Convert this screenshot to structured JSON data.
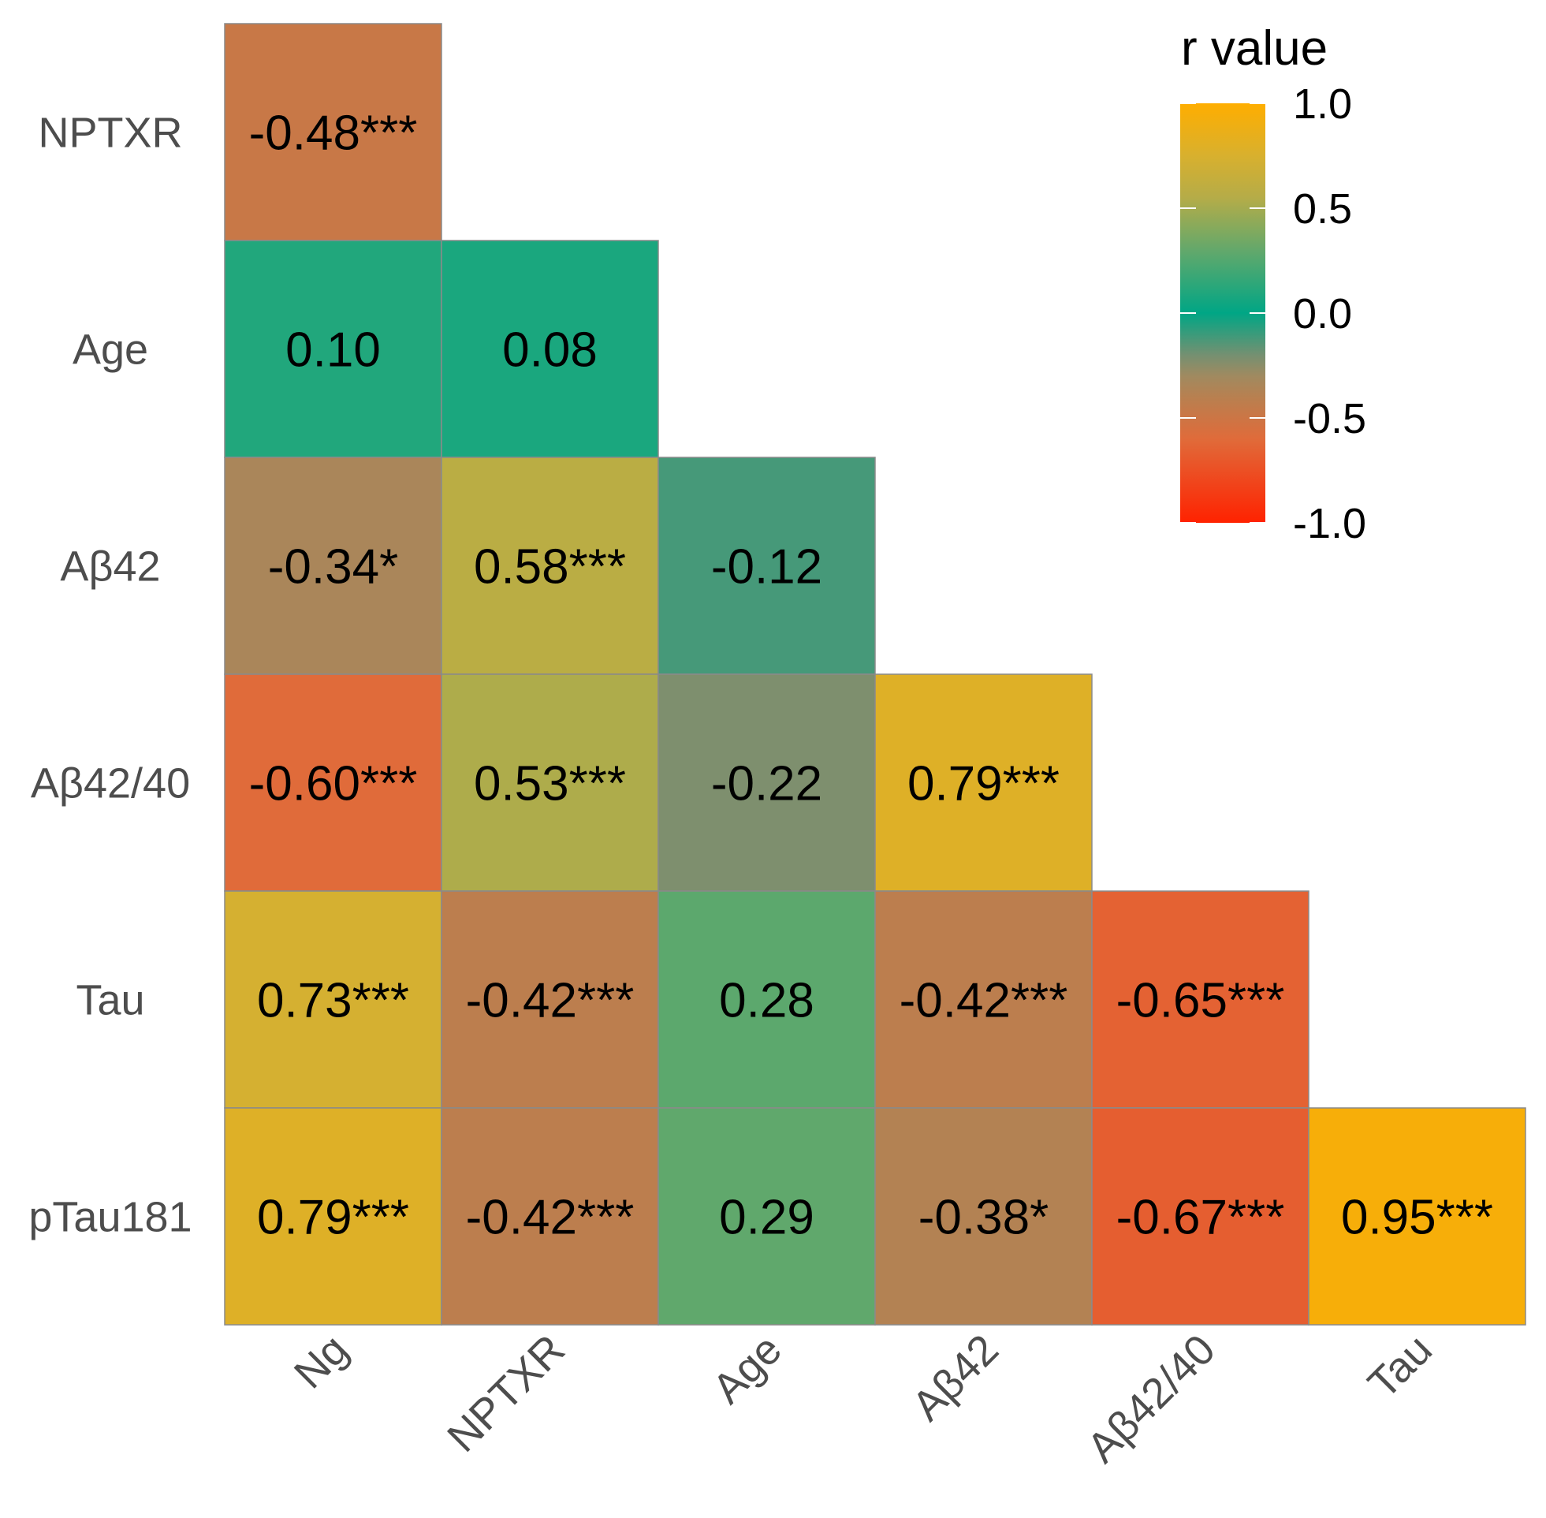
{
  "chart_data": {
    "type": "heatmap",
    "title": "",
    "row_labels": [
      "NPTXR",
      "Age",
      "Aβ42",
      "Aβ42/40",
      "Tau",
      "pTau181"
    ],
    "column_labels": [
      "Ng",
      "NPTXR",
      "Age",
      "Aβ42",
      "Aβ42/40",
      "Tau"
    ],
    "cells": [
      {
        "row": "NPTXR",
        "col": "Ng",
        "r": -0.48,
        "label": "-0.48***"
      },
      {
        "row": "Age",
        "col": "Ng",
        "r": 0.1,
        "label": "0.10"
      },
      {
        "row": "Age",
        "col": "NPTXR",
        "r": 0.08,
        "label": "0.08"
      },
      {
        "row": "Aβ42",
        "col": "Ng",
        "r": -0.34,
        "label": "-0.34*"
      },
      {
        "row": "Aβ42",
        "col": "NPTXR",
        "r": 0.58,
        "label": "0.58***"
      },
      {
        "row": "Aβ42",
        "col": "Age",
        "r": -0.12,
        "label": "-0.12"
      },
      {
        "row": "Aβ42/40",
        "col": "Ng",
        "r": -0.6,
        "label": "-0.60***"
      },
      {
        "row": "Aβ42/40",
        "col": "NPTXR",
        "r": 0.53,
        "label": "0.53***"
      },
      {
        "row": "Aβ42/40",
        "col": "Age",
        "r": -0.22,
        "label": "-0.22"
      },
      {
        "row": "Aβ42/40",
        "col": "Aβ42",
        "r": 0.79,
        "label": "0.79***"
      },
      {
        "row": "Tau",
        "col": "Ng",
        "r": 0.73,
        "label": "0.73***"
      },
      {
        "row": "Tau",
        "col": "NPTXR",
        "r": -0.42,
        "label": "-0.42***"
      },
      {
        "row": "Tau",
        "col": "Age",
        "r": 0.28,
        "label": "0.28"
      },
      {
        "row": "Tau",
        "col": "Aβ42",
        "r": -0.42,
        "label": "-0.42***"
      },
      {
        "row": "Tau",
        "col": "Aβ42/40",
        "r": -0.65,
        "label": "-0.65***"
      },
      {
        "row": "pTau181",
        "col": "Ng",
        "r": 0.79,
        "label": "0.79***"
      },
      {
        "row": "pTau181",
        "col": "NPTXR",
        "r": -0.42,
        "label": "-0.42***"
      },
      {
        "row": "pTau181",
        "col": "Age",
        "r": 0.29,
        "label": "0.29"
      },
      {
        "row": "pTau181",
        "col": "Aβ42",
        "r": -0.38,
        "label": "-0.38*"
      },
      {
        "row": "pTau181",
        "col": "Aβ42/40",
        "r": -0.67,
        "label": "-0.67***"
      },
      {
        "row": "pTau181",
        "col": "Tau",
        "r": 0.95,
        "label": "0.95***"
      }
    ],
    "legend": {
      "title": "r value",
      "range": [
        -1.0,
        1.0
      ],
      "ticks": [
        "1.0",
        "0.5",
        "0.0",
        "-0.5",
        "-1.0"
      ],
      "tick_values": [
        1.0,
        0.5,
        0.0,
        -0.5,
        -1.0
      ],
      "color_stops": [
        {
          "value": -1.0,
          "color": "#ff2200"
        },
        {
          "value": -0.6,
          "color": "#e06b3a"
        },
        {
          "value": -0.4,
          "color": "#b88050"
        },
        {
          "value": -0.3,
          "color": "#a08a60"
        },
        {
          "value": -0.2,
          "color": "#759071"
        },
        {
          "value": 0.0,
          "color": "#00a685"
        },
        {
          "value": 0.3,
          "color": "#63a86b"
        },
        {
          "value": 0.55,
          "color": "#b5ac48"
        },
        {
          "value": 0.75,
          "color": "#d8b02e"
        },
        {
          "value": 1.0,
          "color": "#ffae00"
        }
      ],
      "position": "top-right"
    }
  }
}
